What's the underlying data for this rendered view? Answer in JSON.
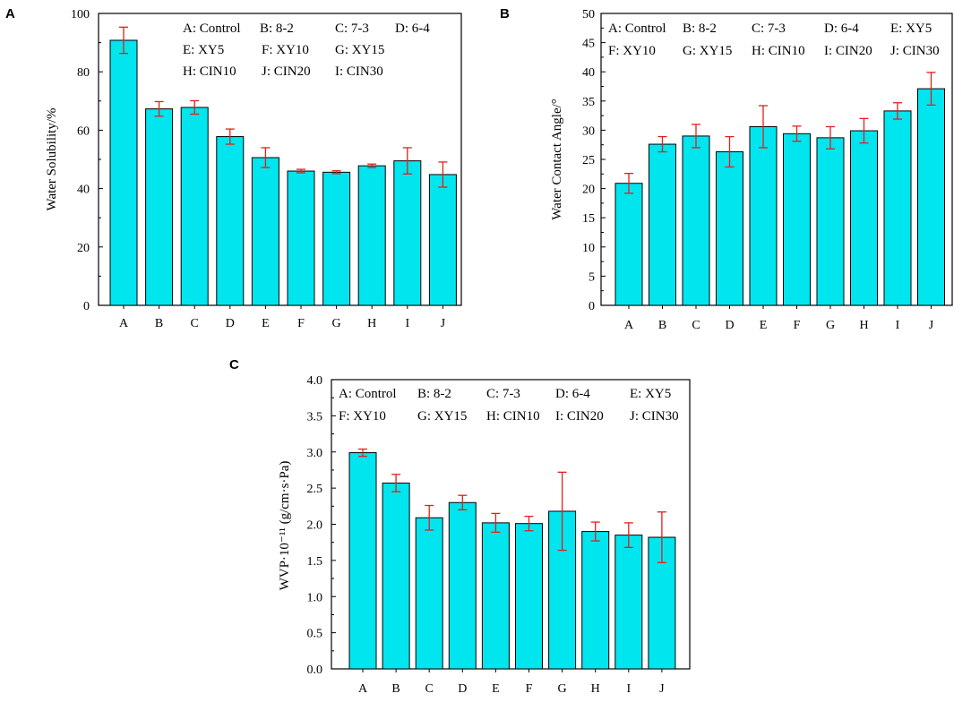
{
  "chart_data": [
    {
      "panel": "A",
      "type": "bar",
      "categories": [
        "A",
        "B",
        "C",
        "D",
        "E",
        "F",
        "G",
        "H",
        "I",
        "J"
      ],
      "values": [
        90.8,
        67.3,
        67.8,
        57.8,
        50.6,
        46.0,
        45.6,
        47.8,
        49.5,
        44.8
      ],
      "errors": [
        4.5,
        2.5,
        2.3,
        2.6,
        3.4,
        0.6,
        0.5,
        0.6,
        4.5,
        4.3
      ],
      "ylabel": "Water Solubility/%",
      "xlabel": "",
      "ylim": [
        0,
        100
      ],
      "yticks": [
        "0",
        "20",
        "40",
        "60",
        "80",
        "100"
      ],
      "legend_rows": [
        [
          "A: Control",
          "B: 8-2",
          "C: 7-3",
          "D: 6-4"
        ],
        [
          "E: XY5",
          "F: XY10",
          "G: XY15"
        ],
        [
          "H: CIN10",
          "J: CIN20",
          "I: CIN30"
        ]
      ]
    },
    {
      "panel": "B",
      "type": "bar",
      "categories": [
        "A",
        "B",
        "C",
        "D",
        "E",
        "F",
        "G",
        "H",
        "I",
        "J"
      ],
      "values": [
        20.9,
        27.6,
        29.0,
        26.3,
        30.6,
        29.4,
        28.7,
        29.9,
        33.3,
        37.1
      ],
      "errors": [
        1.7,
        1.3,
        2.0,
        2.6,
        3.6,
        1.3,
        1.9,
        2.1,
        1.4,
        2.8
      ],
      "ylabel": "Water Contact Angle/°",
      "xlabel": "",
      "ylim": [
        0,
        50
      ],
      "yticks": [
        "0",
        "5",
        "10",
        "15",
        "20",
        "25",
        "30",
        "35",
        "40",
        "45",
        "50"
      ],
      "legend_rows": [
        [
          "A: Control",
          "B: 8-2",
          "C: 7-3",
          "D: 6-4",
          "E: XY5"
        ],
        [
          "F: XY10",
          "G: XY15",
          "H: CIN10",
          "I: CIN20",
          "J: CIN30"
        ]
      ]
    },
    {
      "panel": "C",
      "type": "bar",
      "categories": [
        "A",
        "B",
        "C",
        "D",
        "E",
        "F",
        "G",
        "H",
        "I",
        "J"
      ],
      "values": [
        2.99,
        2.57,
        2.09,
        2.3,
        2.02,
        2.01,
        2.18,
        1.9,
        1.85,
        1.82
      ],
      "errors": [
        0.05,
        0.12,
        0.17,
        0.1,
        0.13,
        0.1,
        0.54,
        0.13,
        0.17,
        0.35
      ],
      "ylabel": "WVP·10⁻¹¹ (g/cm·s·Pa)",
      "xlabel": "",
      "ylim": [
        0,
        4
      ],
      "yticks": [
        "0.0",
        "0.5",
        "1.0",
        "1.5",
        "2.0",
        "2.5",
        "3.0",
        "3.5",
        "4.0"
      ],
      "legend_rows": [
        [
          "A: Control",
          "B: 8-2",
          "C: 7-3",
          "D: 6-4",
          "E: XY5"
        ],
        [
          "F: XY10",
          "G: XY15",
          "H: CIN10",
          "I: CIN20",
          "J: CIN30"
        ]
      ]
    }
  ]
}
